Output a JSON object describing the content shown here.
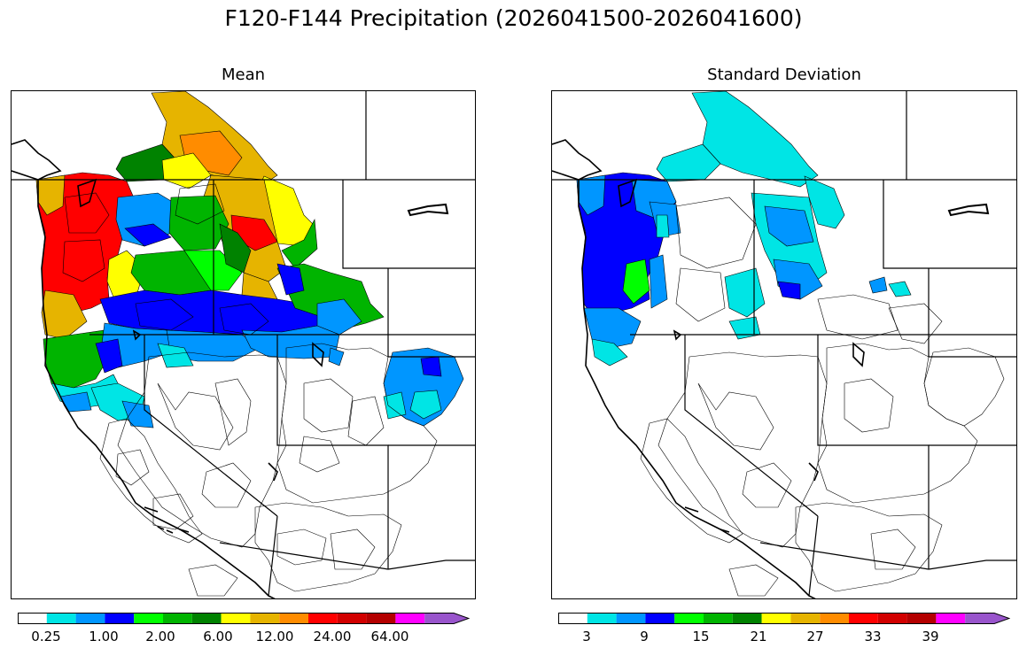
{
  "figure": {
    "title": "F120-F144 Precipitation (2026041500-2026041600)"
  },
  "panels": [
    {
      "title": "Mean",
      "colorbar": {
        "colors": [
          "#ffffff",
          "#00e5e5",
          "#0096ff",
          "#0000ff",
          "#00ff00",
          "#00b400",
          "#008200",
          "#ffff00",
          "#e6b400",
          "#ff8c00",
          "#ff0000",
          "#d20000",
          "#b40000",
          "#ff00ff",
          "#9955cc"
        ],
        "tick_labels": [
          "0.25",
          "1.00",
          "2.00",
          "6.00",
          "12.00",
          "24.00",
          "64.00"
        ],
        "extend": "max"
      }
    },
    {
      "title": "Standard Deviation",
      "colorbar": {
        "colors": [
          "#ffffff",
          "#00e5e5",
          "#0096ff",
          "#0000ff",
          "#00ff00",
          "#00b400",
          "#008200",
          "#ffff00",
          "#e6b400",
          "#ff8c00",
          "#ff0000",
          "#d20000",
          "#b40000",
          "#ff00ff",
          "#9955cc"
        ],
        "tick_labels": [
          "3",
          "9",
          "15",
          "21",
          "27",
          "33",
          "39"
        ],
        "extend": "max"
      }
    }
  ]
}
